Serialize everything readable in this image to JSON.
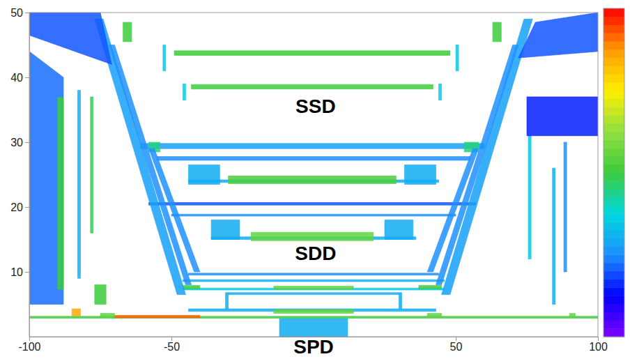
{
  "chart_data": {
    "type": "heatmap",
    "xlim": [
      -100,
      100
    ],
    "xticks": [
      -100,
      -50,
      50,
      100
    ],
    "ylim": [
      0,
      50
    ],
    "yticks": [
      10,
      20,
      30,
      40,
      50
    ],
    "zlim": [
      0,
      1
    ],
    "annotations": [
      {
        "text": "SSD",
        "x": 0.7,
        "y": 35.3
      },
      {
        "text": "SDD",
        "x": 0.7,
        "y": 12.6
      },
      {
        "text": "SPD",
        "x": 0,
        "y": -1.8
      }
    ],
    "regions": [
      {
        "x": [
          -100,
          100,
          100,
          -100
        ],
        "y": [
          2.85,
          2.85,
          3.15,
          3.15
        ],
        "value": 0.5
      },
      {
        "x": [
          -12,
          12,
          12,
          -12
        ],
        "y": [
          0,
          0,
          2.8,
          2.8
        ],
        "value": 0.3
      },
      {
        "x": [
          -85,
          -82,
          -82,
          -85
        ],
        "y": [
          3.2,
          3.2,
          4.3,
          4.3
        ],
        "value": 0.85
      },
      {
        "x": [
          -70,
          -40,
          -40,
          -70
        ],
        "y": [
          2.9,
          2.9,
          3.3,
          3.3
        ],
        "value": 0.92
      },
      {
        "x": [
          -75,
          -70,
          -70,
          -75
        ],
        "y": [
          3,
          3,
          3.6,
          3.6
        ],
        "value": 0.55
      },
      {
        "x": [
          40,
          45,
          45,
          40
        ],
        "y": [
          3,
          3,
          3.6,
          3.6
        ],
        "value": 0.55
      },
      {
        "x": [
          90,
          92,
          92,
          90
        ],
        "y": [
          3,
          3,
          3.6,
          3.6
        ],
        "value": 0.55
      },
      {
        "x": [
          -44,
          43,
          43,
          -44
        ],
        "y": [
          3.9,
          3.9,
          4.3,
          4.3
        ],
        "value": 0.3
      },
      {
        "x": [
          -14,
          14,
          14,
          -14
        ],
        "y": [
          3.6,
          3.6,
          4.2,
          4.2
        ],
        "value": 0.55
      },
      {
        "x": [
          -30,
          30,
          30,
          -30
        ],
        "y": [
          6.5,
          6.5,
          6.8,
          6.8
        ],
        "value": 0.3
      },
      {
        "x": [
          -31,
          -30,
          -30,
          -31
        ],
        "y": [
          4.3,
          4.3,
          6.8,
          6.8
        ],
        "value": 0.3
      },
      {
        "x": [
          30,
          31,
          31,
          30
        ],
        "y": [
          4.3,
          4.3,
          6.8,
          6.8
        ],
        "value": 0.3
      },
      {
        "x": [
          -46,
          46,
          46,
          -46
        ],
        "y": [
          7.2,
          7.2,
          7.5,
          7.5
        ],
        "value": 0.35
      },
      {
        "x": [
          -14,
          14,
          14,
          -14
        ],
        "y": [
          7.3,
          7.3,
          7.8,
          7.8
        ],
        "value": 0.55
      },
      {
        "x": [
          -46,
          -40,
          -40,
          -46
        ],
        "y": [
          7.4,
          7.4,
          7.9,
          7.9
        ],
        "value": 0.5
      },
      {
        "x": [
          37,
          45,
          45,
          37
        ],
        "y": [
          7.4,
          7.4,
          7.9,
          7.9
        ],
        "value": 0.5
      },
      {
        "x": [
          -46,
          46,
          46,
          -46
        ],
        "y": [
          8.5,
          8.5,
          8.8,
          8.8
        ],
        "value": 0.3
      },
      {
        "x": [
          -44,
          44,
          44,
          -44
        ],
        "y": [
          9.5,
          9.5,
          9.8,
          9.8
        ],
        "value": 0.25
      },
      {
        "x": [
          -36,
          36,
          36,
          -36
        ],
        "y": [
          15.0,
          15.0,
          15.4,
          15.4
        ],
        "value": 0.3
      },
      {
        "x": [
          -36,
          -26,
          -26,
          -36
        ],
        "y": [
          15,
          15,
          18,
          18
        ],
        "value": 0.3
      },
      {
        "x": [
          25,
          35,
          35,
          25
        ],
        "y": [
          15,
          15,
          18,
          18
        ],
        "value": 0.3
      },
      {
        "x": [
          -22,
          21,
          21,
          -22
        ],
        "y": [
          14.8,
          14.8,
          16.1,
          16.1
        ],
        "value": 0.55
      },
      {
        "x": [
          -50,
          50,
          50,
          -50
        ],
        "y": [
          18.6,
          18.6,
          18.9,
          18.9
        ],
        "value": 0.25
      },
      {
        "x": [
          -58,
          57,
          57,
          -58
        ],
        "y": [
          20.3,
          20.3,
          20.7,
          20.7
        ],
        "value": 0.2
      },
      {
        "x": [
          -44,
          44,
          44,
          -44
        ],
        "y": [
          23.8,
          23.8,
          24.2,
          24.2
        ],
        "value": 0.3
      },
      {
        "x": [
          -44,
          -33,
          -33,
          -44
        ],
        "y": [
          23.5,
          23.5,
          26.5,
          26.5
        ],
        "value": 0.3
      },
      {
        "x": [
          32,
          43,
          43,
          32
        ],
        "y": [
          23.5,
          23.5,
          26.5,
          26.5
        ],
        "value": 0.3
      },
      {
        "x": [
          -30,
          29,
          29,
          -30
        ],
        "y": [
          23.6,
          23.6,
          24.8,
          24.8
        ],
        "value": 0.52
      },
      {
        "x": [
          -55,
          55,
          55,
          -55
        ],
        "y": [
          27.2,
          27.2,
          27.8,
          27.8
        ],
        "value": 0.25
      },
      {
        "x": [
          -61,
          60,
          60,
          -61
        ],
        "y": [
          29.0,
          29.0,
          29.8,
          29.8
        ],
        "value": 0.28
      },
      {
        "x": [
          -58,
          -54,
          -54,
          -58
        ],
        "y": [
          28.5,
          28.5,
          30,
          30
        ],
        "value": 0.45
      },
      {
        "x": [
          53,
          58,
          58,
          53
        ],
        "y": [
          28.5,
          28.5,
          30,
          30
        ],
        "value": 0.45
      },
      {
        "x": [
          -46,
          -45,
          -45,
          -46
        ],
        "y": [
          36.5,
          36.5,
          39,
          39
        ],
        "value": 0.35
      },
      {
        "x": [
          44,
          45,
          45,
          44
        ],
        "y": [
          36.5,
          36.5,
          39,
          39
        ],
        "value": 0.35
      },
      {
        "x": [
          -43,
          42,
          42,
          -43
        ],
        "y": [
          38.2,
          38.2,
          38.9,
          38.9
        ],
        "value": 0.5
      },
      {
        "x": [
          -53,
          -52,
          -52,
          -53
        ],
        "y": [
          41,
          41,
          45,
          45
        ],
        "value": 0.35
      },
      {
        "x": [
          50,
          51,
          51,
          50
        ],
        "y": [
          41,
          41,
          45,
          45
        ],
        "value": 0.35
      },
      {
        "x": [
          -49,
          48,
          48,
          -49
        ],
        "y": [
          43.4,
          43.4,
          44.1,
          44.1
        ],
        "value": 0.5
      },
      {
        "x": [
          -77,
          -74,
          -45,
          -48
        ],
        "y": [
          49,
          49,
          6.5,
          6.5
        ],
        "value": 0.28
      },
      {
        "x": [
          -72,
          -70,
          -43,
          -45
        ],
        "y": [
          45,
          45,
          8,
          8
        ],
        "value": 0.25
      },
      {
        "x": [
          -58,
          -56,
          -40,
          -42
        ],
        "y": [
          29,
          29,
          10,
          10
        ],
        "value": 0.25
      },
      {
        "x": [
          77,
          74,
          45,
          48
        ],
        "y": [
          49,
          49,
          6.5,
          6.5
        ],
        "value": 0.28
      },
      {
        "x": [
          72,
          70,
          43,
          45
        ],
        "y": [
          45,
          45,
          8,
          8
        ],
        "value": 0.25
      },
      {
        "x": [
          58,
          56,
          40,
          42
        ],
        "y": [
          29,
          29,
          10,
          10
        ],
        "value": 0.25
      },
      {
        "x": [
          -100,
          -75,
          -71,
          -100
        ],
        "y": [
          50,
          50,
          42,
          46.5
        ],
        "value": 0.2
      },
      {
        "x": [
          78,
          100,
          100,
          72
        ],
        "y": [
          48.5,
          50,
          44,
          43
        ],
        "value": 0.2
      },
      {
        "x": [
          -100,
          -88,
          -88,
          -100
        ],
        "y": [
          44,
          40,
          5,
          5
        ],
        "value": 0.22
      },
      {
        "x": [
          -90,
          -88,
          -88,
          -90
        ],
        "y": [
          7.3,
          7.3,
          36.9,
          36.9
        ],
        "value": 0.5
      },
      {
        "x": [
          -83,
          -82,
          -82,
          -83
        ],
        "y": [
          9,
          9,
          38,
          38
        ],
        "value": 0.3
      },
      {
        "x": [
          -78.5,
          -77.5,
          -77.5,
          -78.5
        ],
        "y": [
          16,
          16,
          37,
          37
        ],
        "value": 0.48
      },
      {
        "x": [
          -77,
          -73,
          -73,
          -77
        ],
        "y": [
          5,
          5,
          8,
          8
        ],
        "value": 0.5
      },
      {
        "x": [
          75.5,
          76.5,
          76.5,
          75.5
        ],
        "y": [
          12,
          12,
          31,
          31
        ],
        "value": 0.35
      },
      {
        "x": [
          84,
          85,
          85,
          84
        ],
        "y": [
          5,
          5,
          26,
          26
        ],
        "value": 0.3
      },
      {
        "x": [
          88,
          89,
          89,
          88
        ],
        "y": [
          10,
          10,
          30,
          30
        ],
        "value": 0.25
      },
      {
        "x": [
          -67,
          -64,
          -64,
          -67
        ],
        "y": [
          45.5,
          45.5,
          48.5,
          48.5
        ],
        "value": 0.5
      },
      {
        "x": [
          63,
          66,
          66,
          63
        ],
        "y": [
          45.5,
          45.5,
          48.5,
          48.5
        ],
        "value": 0.5
      },
      {
        "x": [
          75,
          100,
          100,
          75
        ],
        "y": [
          31,
          31,
          37,
          37
        ],
        "value": 0.15
      }
    ]
  }
}
